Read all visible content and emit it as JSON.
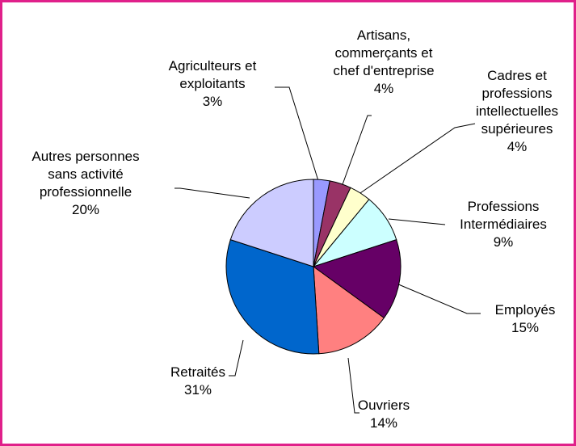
{
  "chart_data": {
    "type": "pie",
    "categories": [
      "Agriculteurs et exploitants",
      "Artisans, commerçants et chef d'entreprise",
      "Cadres et professions intellectuelles supérieures",
      "Professions Intermédiaires",
      "Employés",
      "Ouvriers",
      "Retraités",
      "Autres personnes sans activité professionnelle"
    ],
    "values": [
      3,
      4,
      4,
      9,
      15,
      14,
      31,
      20
    ],
    "value_labels": [
      "3%",
      "4%",
      "4%",
      "9%",
      "15%",
      "14%",
      "31%",
      "20%"
    ],
    "colors": [
      "#9999ff",
      "#993366",
      "#ffffcc",
      "#ccffff",
      "#660066",
      "#ff8080",
      "#0066cc",
      "#ccccff"
    ]
  }
}
